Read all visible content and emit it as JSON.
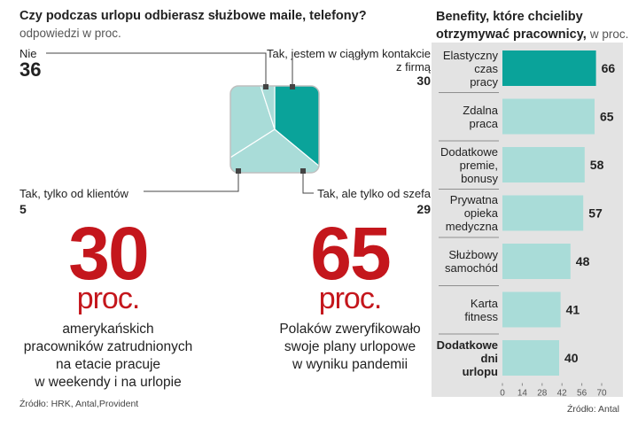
{
  "left": {
    "title": "Czy podczas urlopu odbierasz służbowe maile, telefony?",
    "subtitle": "odpowiedzi w proc.",
    "labels": [
      {
        "text": "Nie",
        "value": "36"
      },
      {
        "text": "Tak, jestem w ciągłym kontakcie z firmą",
        "value": "30"
      },
      {
        "text": "Tak, tylko od klientów",
        "value": "5"
      },
      {
        "text": "Tak, ale tylko od szefa",
        "value": "29"
      }
    ],
    "stat1": {
      "number": "30",
      "unit": "proc.",
      "lines": [
        "amerykańskich",
        "pracowników zatrudnionych",
        "na etacie pracuje",
        "w weekendy i na urlopie"
      ]
    },
    "stat2": {
      "number": "65",
      "unit": "proc.",
      "lines": [
        "Polaków zweryfikowało",
        "swoje plany urlopowe",
        "w wyniku pandemii"
      ]
    },
    "source": "Źródło: HRK, Antal,Provident"
  },
  "right": {
    "title_bold": "Benefity, które chcieliby otrzymywać pracownicy,",
    "title_light": "w proc.",
    "source": "Źródło: Antal"
  },
  "chart_data": [
    {
      "type": "pie",
      "categories": [
        "Nie",
        "Tak, jestem w ciągłym kontakcie z firmą",
        "Tak, ale tylko od szefa",
        "Tak, tylko od klientów"
      ],
      "values": [
        36,
        30,
        29,
        5
      ],
      "highlight": "Nie",
      "colors": {
        "highlight": "#0aa39a",
        "other": "#a9dcd8"
      }
    },
    {
      "type": "bar",
      "orientation": "horizontal",
      "categories": [
        "Elastyczny czas pracy",
        "Zdalna praca",
        "Dodatkowe premie, bonusy",
        "Prywatna opieka medyczna",
        "Służbowy samochód",
        "Karta fitness",
        "Dodatkowe dni urlopu"
      ],
      "category_lines": [
        [
          "Elastyczny",
          "czas",
          "pracy"
        ],
        [
          "Zdalna",
          "praca"
        ],
        [
          "Dodatkowe",
          "premie,",
          "bonusy"
        ],
        [
          "Prywatna",
          "opieka",
          "medyczna"
        ],
        [
          "Służbowy",
          "samochód"
        ],
        [
          "Karta",
          "fitness"
        ],
        [
          "Dodatkowe",
          "dni",
          "urlopu"
        ]
      ],
      "bold_categories": [
        "Dodatkowe dni urlopu"
      ],
      "values": [
        66,
        65,
        58,
        57,
        48,
        41,
        40
      ],
      "highlight_index": 0,
      "colors": {
        "highlight": "#0aa39a",
        "other": "#a9dcd8"
      },
      "xlim": [
        0,
        70
      ],
      "xticks": [
        "0",
        "14",
        "28",
        "42",
        "56",
        "70"
      ]
    }
  ]
}
